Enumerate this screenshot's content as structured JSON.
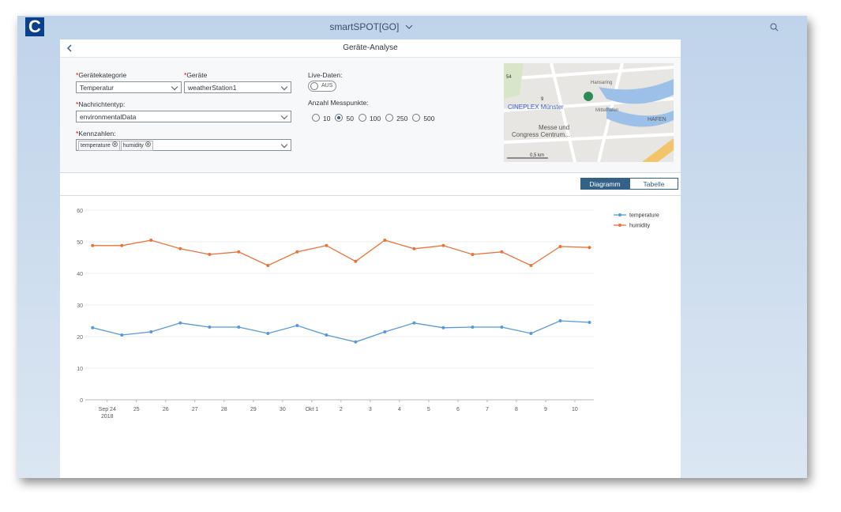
{
  "shell": {
    "logo": "C",
    "title": "smartSPOT[GO]"
  },
  "page": {
    "title": "Geräte-Analyse"
  },
  "form": {
    "required_marker": "*",
    "category": {
      "label": "Gerätekategorie",
      "value": "Temperatur"
    },
    "device": {
      "label": "Geräte",
      "value": "weatherStation1"
    },
    "message_type": {
      "label": "Nachrichtentyp:",
      "value": "environmentalData"
    },
    "metrics": {
      "label": "Kennzahlen:",
      "tokens": [
        "temperature",
        "humidity"
      ]
    },
    "live": {
      "label": "Live-Daten:",
      "state": "AUS"
    },
    "points": {
      "label": "Anzahl Messpunkte:",
      "options": [
        "10",
        "50",
        "100",
        "250",
        "500"
      ],
      "selected": 1
    }
  },
  "map": {
    "labels": [
      "Hansaring",
      "CINEPLEX Münster",
      "Mittelhafen",
      "Messe und",
      "Congress Centrum...",
      "HAFEN",
      "0,5 km",
      "54",
      "9"
    ]
  },
  "view_toggle": {
    "options": [
      "Diagramm",
      "Tabelle"
    ],
    "selected": 0
  },
  "chart_data": {
    "type": "line",
    "x_year_label": "2018",
    "xlim": [
      -0.75,
      16.65
    ],
    "xticks": [
      {
        "value": 0,
        "label": "Sep 24"
      },
      {
        "value": 1,
        "label": "25"
      },
      {
        "value": 2,
        "label": "26"
      },
      {
        "value": 3,
        "label": "27"
      },
      {
        "value": 4,
        "label": "28"
      },
      {
        "value": 5,
        "label": "29"
      },
      {
        "value": 6,
        "label": "30"
      },
      {
        "value": 7,
        "label": "Okt 1"
      },
      {
        "value": 8,
        "label": "2"
      },
      {
        "value": 9,
        "label": "3"
      },
      {
        "value": 10,
        "label": "4"
      },
      {
        "value": 11,
        "label": "5"
      },
      {
        "value": 12,
        "label": "6"
      },
      {
        "value": 13,
        "label": "7"
      },
      {
        "value": 14,
        "label": "8"
      },
      {
        "value": 15,
        "label": "9"
      },
      {
        "value": 16,
        "label": "10"
      }
    ],
    "ylim": [
      0,
      60
    ],
    "yticks": [
      0,
      10,
      20,
      30,
      40,
      50,
      60
    ],
    "grid": true,
    "legend": "top-right",
    "x": [
      -0.5,
      0.5,
      1.5,
      2.5,
      3.5,
      4.5,
      5.5,
      6.5,
      7.5,
      8.5,
      9.5,
      10.5,
      11.5,
      12.5,
      13.5,
      14.5,
      15.5,
      16.5
    ],
    "series": [
      {
        "name": "temperature",
        "color": "#5899da",
        "values": [
          22.8,
          20.5,
          21.5,
          24.3,
          23,
          23,
          21,
          23.5,
          20.5,
          18.3,
          21.5,
          24.3,
          22.8,
          23,
          23,
          21,
          25,
          24.5
        ]
      },
      {
        "name": "humidity",
        "color": "#e8743b",
        "values": [
          48.8,
          48.8,
          50.5,
          47.8,
          46,
          46.8,
          42.5,
          46.8,
          48.8,
          43.8,
          50.5,
          47.8,
          48.8,
          46,
          46.8,
          42.5,
          48.5,
          48.2
        ]
      }
    ]
  }
}
